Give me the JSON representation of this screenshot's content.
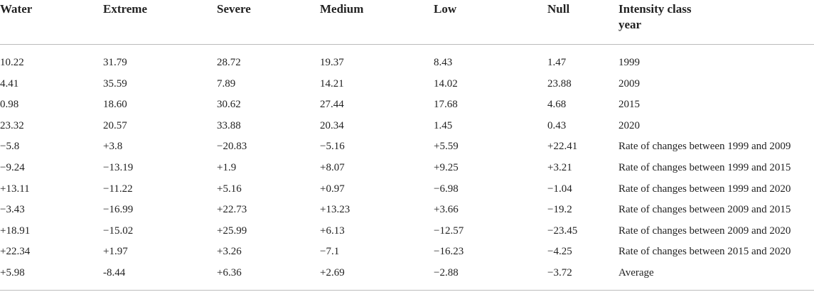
{
  "table": {
    "header": [
      "Water",
      "Extreme",
      "Severe",
      "Medium",
      "Low",
      "Null",
      "Intensity class year"
    ],
    "rows": [
      [
        "10.22",
        "31.79",
        "28.72",
        "19.37",
        "8.43",
        "1.47",
        "1999"
      ],
      [
        "4.41",
        "35.59",
        "7.89",
        "14.21",
        "14.02",
        "23.88",
        "2009"
      ],
      [
        "0.98",
        "18.60",
        "30.62",
        "27.44",
        "17.68",
        "4.68",
        "2015"
      ],
      [
        "23.32",
        "20.57",
        "33.88",
        "20.34",
        "1.45",
        "0.43",
        "2020"
      ],
      [
        "−5.8",
        "+3.8",
        "−20.83",
        "−5.16",
        "+5.59",
        "+22.41",
        "Rate of changes between 1999 and 2009"
      ],
      [
        "−9.24",
        "−13.19",
        "+1.9",
        "+8.07",
        "+9.25",
        "+3.21",
        "Rate of changes between 1999 and 2015"
      ],
      [
        "+13.11",
        "−11.22",
        "+5.16",
        "+0.97",
        "−6.98",
        "−1.04",
        "Rate of changes between 1999 and 2020"
      ],
      [
        "−3.43",
        "−16.99",
        "+22.73",
        "+13.23",
        "+3.66",
        "−19.2",
        "Rate of changes between 2009 and 2015"
      ],
      [
        "+18.91",
        "−15.02",
        "+25.99",
        "+6.13",
        "−12.57",
        "−23.45",
        "Rate of changes between 2009 and 2020"
      ],
      [
        "+22.34",
        "+1.97",
        "+3.26",
        "−7.1",
        "−16.23",
        "−4.25",
        "Rate of changes between 2015 and 2020"
      ],
      [
        "+5.98",
        "-8.44",
        "+6.36",
        "+2.69",
        "−2.88",
        "−3.72",
        "Average"
      ]
    ]
  }
}
